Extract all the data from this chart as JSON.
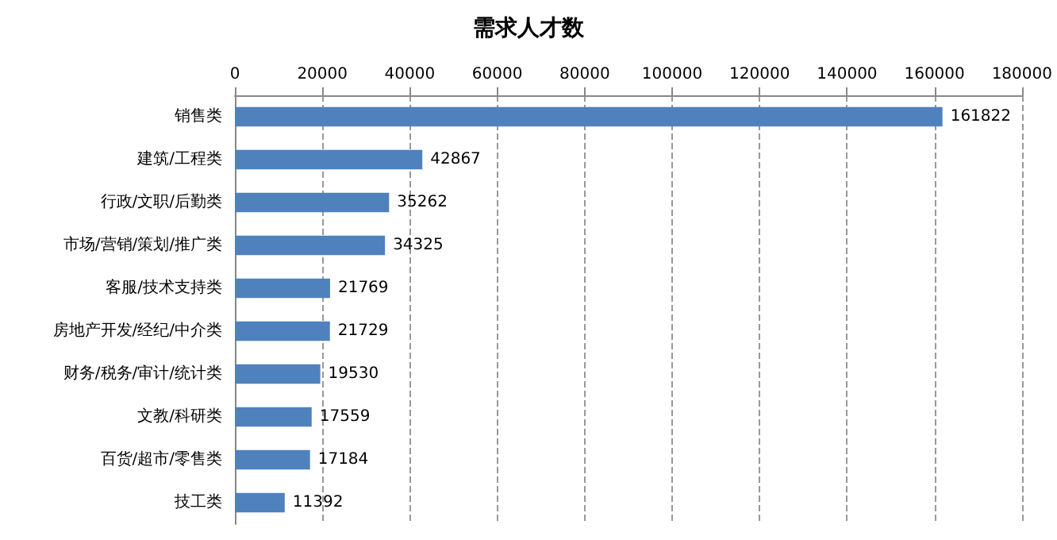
{
  "chart_data": {
    "type": "bar",
    "orientation": "horizontal",
    "title": "需求人才数",
    "categories": [
      "销售类",
      "建筑/工程类",
      "行政/文职/后勤类",
      "市场/营销/策划/推广类",
      "客服/技术支持类",
      "房地产开发/经纪/中介类",
      "财务/税务/审计/统计类",
      "文教/科研类",
      "百货/超市/零售类",
      "技工类"
    ],
    "values": [
      161822,
      42867,
      35262,
      34325,
      21769,
      21729,
      19530,
      17559,
      17184,
      11392
    ],
    "color": "#4f81bd",
    "xlim": [
      0,
      180000
    ],
    "xticks": [
      0,
      20000,
      40000,
      60000,
      80000,
      100000,
      120000,
      140000,
      160000,
      180000
    ],
    "grid": "x",
    "data_labels": true
  }
}
